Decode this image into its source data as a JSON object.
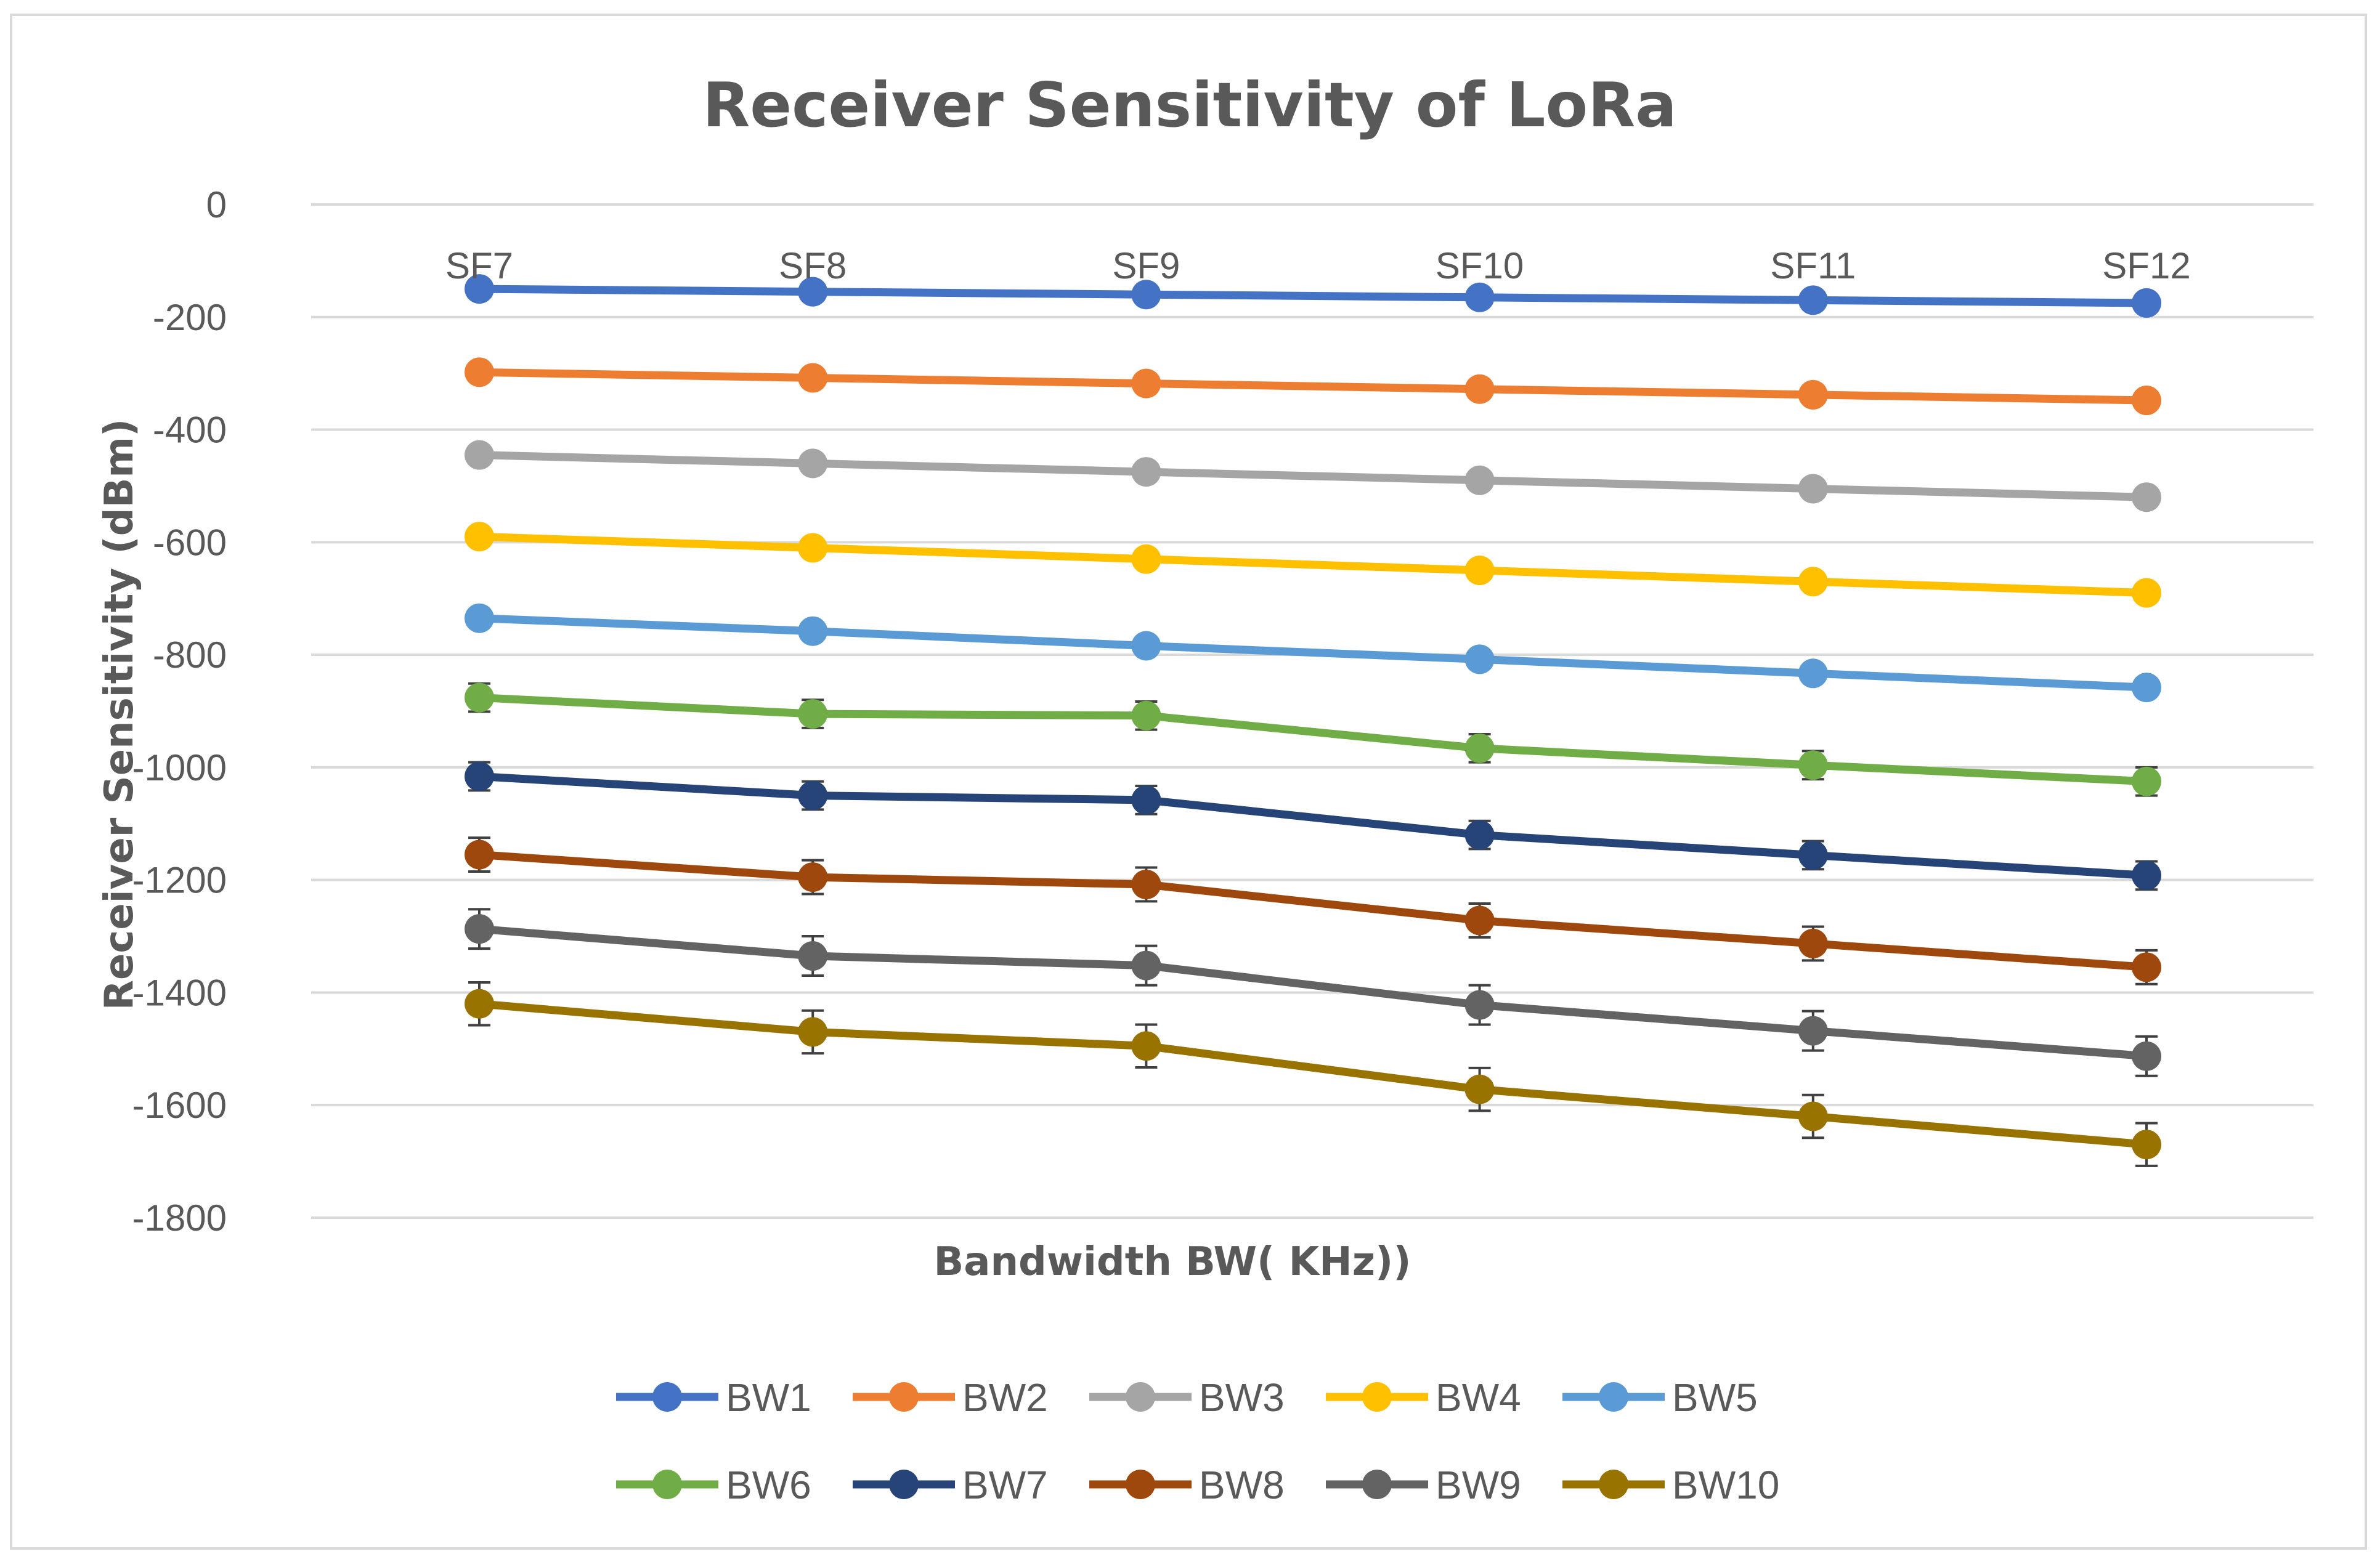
{
  "chart_data": {
    "type": "line",
    "title": "Receiver Sensitivity of LoRa",
    "xlabel": "Bandwidth BW( KHz))",
    "ylabel": "Receiver Sensitivity (dBm)",
    "categories": [
      "SF7",
      "SF8",
      "SF9",
      "SF10",
      "SF11",
      "SF12"
    ],
    "ylim": [
      -1800,
      0
    ],
    "yticks": [
      0,
      -200,
      -400,
      -600,
      -800,
      -1000,
      -1200,
      -1400,
      -1600,
      -1800
    ],
    "yticks_labels": [
      "0",
      "-200",
      "-400",
      "-600",
      "-800",
      "-1000",
      "-1200",
      "-1400",
      "-1600",
      "-1800"
    ],
    "grid": true,
    "legend": "bottom",
    "series": [
      {
        "name": "BW1",
        "color": "#4472C4",
        "values": [
          -150,
          -155,
          -160,
          -165,
          -170,
          -175
        ],
        "error": [
          0,
          0,
          0,
          0,
          0,
          0
        ]
      },
      {
        "name": "BW2",
        "color": "#ED7D31",
        "values": [
          -298,
          -308,
          -318,
          -328,
          -338,
          -348
        ],
        "error": [
          0,
          0,
          0,
          0,
          0,
          0
        ]
      },
      {
        "name": "BW3",
        "color": "#A5A5A5",
        "values": [
          -445,
          -460,
          -475,
          -490,
          -505,
          -520
        ],
        "error": [
          0,
          0,
          0,
          0,
          0,
          0
        ]
      },
      {
        "name": "BW4",
        "color": "#FFC000",
        "values": [
          -590,
          -610,
          -630,
          -650,
          -670,
          -690
        ],
        "error": [
          0,
          0,
          0,
          0,
          0,
          0
        ]
      },
      {
        "name": "BW5",
        "color": "#5B9BD5",
        "values": [
          -735,
          -758,
          -784,
          -808,
          -833,
          -858
        ],
        "error": [
          12,
          12,
          12,
          12,
          12,
          12
        ]
      },
      {
        "name": "BW6",
        "color": "#70AD47",
        "values": [
          -876,
          -905,
          -908,
          -966,
          -996,
          -1025
        ],
        "error": [
          25,
          25,
          25,
          25,
          25,
          25
        ]
      },
      {
        "name": "BW7",
        "color": "#264478",
        "values": [
          -1016,
          -1050,
          -1058,
          -1120,
          -1156,
          -1192
        ],
        "error": [
          25,
          25,
          25,
          25,
          25,
          25
        ]
      },
      {
        "name": "BW8",
        "color": "#9E480E",
        "values": [
          -1155,
          -1195,
          -1208,
          -1272,
          -1313,
          -1355
        ],
        "error": [
          30,
          30,
          30,
          30,
          30,
          30
        ]
      },
      {
        "name": "BW9",
        "color": "#636363",
        "values": [
          -1287,
          -1335,
          -1352,
          -1422,
          -1468,
          -1513
        ],
        "error": [
          35,
          35,
          35,
          35,
          35,
          35
        ]
      },
      {
        "name": "BW10",
        "color": "#997300",
        "values": [
          -1420,
          -1470,
          -1495,
          -1572,
          -1620,
          -1670
        ],
        "error": [
          38,
          38,
          38,
          38,
          38,
          38
        ]
      }
    ]
  }
}
